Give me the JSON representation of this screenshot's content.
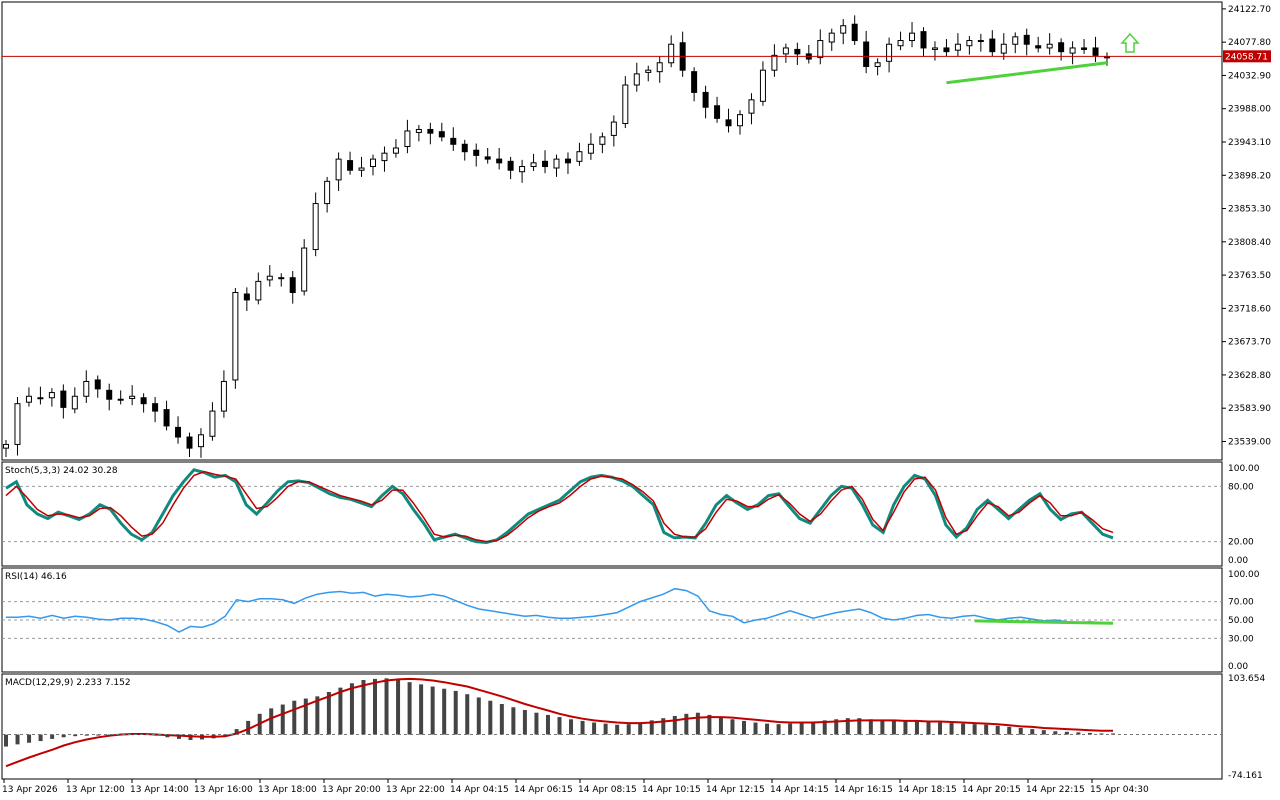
{
  "current_price_label": "24058.71",
  "colors": {
    "background": "#ffffff",
    "grid_border": "#000000",
    "bull_candle": "#ffffff",
    "bear_candle": "#000000",
    "price_line": "#c00000",
    "trendline": "#4fd13b",
    "arrow": "#4fd13b",
    "stoch_main": "#0f8a7e",
    "stoch_signal": "#c00000",
    "rsi": "#3399ee",
    "macd_hist": "#444444",
    "macd_signal": "#c00000"
  },
  "chart_data": [
    {
      "type": "candlestick",
      "price_axis_ticks": [
        "24122.70",
        "24077.80",
        "24032.90",
        "23988.00",
        "23943.10",
        "23898.20",
        "23853.30",
        "23808.40",
        "23763.50",
        "23718.60",
        "23673.70",
        "23628.80",
        "23583.90",
        "23539.00"
      ],
      "current_price": 24058.71,
      "ylim": [
        23514,
        24132
      ],
      "time_labels": [
        "13 Apr 2026",
        "13 Apr 12:00",
        "13 Apr 14:00",
        "13 Apr 16:00",
        "13 Apr 18:00",
        "13 Apr 20:00",
        "13 Apr 22:00",
        "14 Apr 04:15",
        "14 Apr 06:15",
        "14 Apr 08:15",
        "14 Apr 10:15",
        "14 Apr 12:15",
        "14 Apr 14:15",
        "14 Apr 16:15",
        "14 Apr 18:15",
        "14 Apr 20:15",
        "14 Apr 22:15",
        "15 Apr 04:30"
      ],
      "close_path": [
        23535,
        23590,
        23600,
        23598,
        23605,
        23585,
        23600,
        23620,
        23610,
        23596,
        23595,
        23600,
        23590,
        23580,
        23560,
        23545,
        23530,
        23548,
        23580,
        23620,
        23740,
        23730,
        23755,
        23762,
        23760,
        23740,
        23800,
        23860,
        23890,
        23920,
        23905,
        23908,
        23920,
        23928,
        23935,
        23958,
        23960,
        23955,
        23950,
        23940,
        23930,
        23925,
        23920,
        23915,
        23905,
        23910,
        23915,
        23910,
        23920,
        23915,
        23930,
        23940,
        23950,
        23970,
        24020,
        24035,
        24040,
        24050,
        24075,
        24040,
        24010,
        23990,
        23975,
        23965,
        23980,
        24000,
        24040,
        24060,
        24070,
        24062,
        24055,
        24080,
        24090,
        24100,
        24080,
        24045,
        24050,
        24075,
        24080,
        24090,
        24070,
        24070,
        24065,
        24075,
        24080,
        24080,
        24065,
        24075,
        24085,
        24075,
        24070,
        24075,
        24065,
        24070,
        24068,
        24060,
        24058
      ],
      "trendline_label": "support",
      "signal_arrow": "up"
    },
    {
      "type": "line",
      "name": "Stoch(5,3,3)",
      "title": "Stoch(5,3,3) 24.02 30.28",
      "main_value": 24.02,
      "signal_value": 30.28,
      "axis_ticks": [
        "100.00",
        "80.00",
        "20.00",
        "0.00"
      ],
      "levels": [
        80,
        20
      ],
      "ylim": [
        0,
        100
      ],
      "main": [
        78,
        85,
        60,
        50,
        45,
        52,
        48,
        44,
        50,
        60,
        55,
        40,
        28,
        22,
        30,
        50,
        70,
        85,
        98,
        95,
        90,
        92,
        85,
        60,
        50,
        62,
        75,
        85,
        86,
        84,
        78,
        72,
        68,
        66,
        62,
        58,
        70,
        80,
        72,
        55,
        40,
        22,
        25,
        28,
        24,
        20,
        19,
        22,
        30,
        40,
        50,
        55,
        60,
        65,
        75,
        85,
        90,
        92,
        90,
        86,
        80,
        70,
        60,
        30,
        24,
        25,
        24,
        40,
        60,
        70,
        62,
        55,
        60,
        70,
        72,
        58,
        45,
        40,
        55,
        70,
        80,
        78,
        60,
        38,
        30,
        60,
        80,
        92,
        88,
        70,
        38,
        25,
        35,
        55,
        65,
        55,
        45,
        55,
        65,
        72,
        55,
        44,
        50,
        52,
        40,
        28,
        24
      ],
      "signal": [
        70,
        80,
        68,
        55,
        48,
        50,
        49,
        46,
        48,
        56,
        57,
        48,
        36,
        26,
        28,
        40,
        60,
        78,
        92,
        96,
        93,
        91,
        88,
        72,
        56,
        58,
        68,
        80,
        85,
        85,
        80,
        75,
        70,
        67,
        64,
        60,
        65,
        76,
        76,
        62,
        46,
        28,
        25,
        27,
        26,
        22,
        20,
        21,
        27,
        36,
        46,
        53,
        58,
        62,
        70,
        80,
        88,
        91,
        90,
        88,
        82,
        74,
        64,
        40,
        28,
        25,
        25,
        34,
        52,
        66,
        64,
        58,
        58,
        66,
        71,
        62,
        50,
        42,
        50,
        64,
        76,
        80,
        66,
        44,
        32,
        52,
        74,
        88,
        90,
        76,
        46,
        28,
        32,
        48,
        62,
        58,
        48,
        52,
        62,
        70,
        62,
        48,
        48,
        52,
        44,
        34,
        30
      ]
    },
    {
      "type": "line",
      "name": "RSI(14)",
      "title": "RSI(14) 46.16",
      "value": 46.16,
      "axis_ticks": [
        "100.00",
        "70.00",
        "50.00",
        "30.00",
        "0.00"
      ],
      "levels": [
        70,
        50,
        30
      ],
      "ylim": [
        0,
        100
      ],
      "values": [
        53,
        53,
        54,
        52,
        55,
        52,
        54,
        53,
        51,
        50,
        52,
        52,
        51,
        48,
        44,
        37,
        43,
        42,
        46,
        54,
        72,
        70,
        73,
        73,
        72,
        68,
        74,
        78,
        80,
        81,
        79,
        80,
        76,
        78,
        77,
        75,
        76,
        78,
        76,
        71,
        66,
        62,
        60,
        58,
        56,
        54,
        55,
        53,
        52,
        52,
        53,
        54,
        56,
        58,
        64,
        70,
        74,
        78,
        84,
        82,
        76,
        60,
        56,
        54,
        47,
        50,
        52,
        56,
        60,
        56,
        52,
        55,
        58,
        60,
        62,
        58,
        52,
        50,
        52,
        55,
        56,
        53,
        52,
        54,
        55,
        52,
        50,
        52,
        53,
        51,
        49,
        50,
        48,
        47,
        48,
        47,
        46
      ],
      "trendline_label": "support"
    },
    {
      "type": "bar",
      "name": "MACD(12,29,9)",
      "title": "MACD(12,29,9) 2.233 7.152",
      "macd_value": 2.233,
      "signal_value": 7.152,
      "axis_ticks": [
        "103.654",
        "-74.161"
      ],
      "ylim": [
        -74.161,
        103.654
      ],
      "histogram": [
        -22,
        -18,
        -15,
        -12,
        -8,
        -5,
        -3,
        -2,
        -1,
        0,
        1,
        2,
        1,
        -2,
        -5,
        -8,
        -10,
        -9,
        -7,
        -4,
        10,
        25,
        38,
        48,
        55,
        62,
        66,
        70,
        78,
        86,
        94,
        100,
        102,
        103,
        100,
        96,
        92,
        88,
        84,
        80,
        74,
        68,
        62,
        56,
        50,
        45,
        40,
        36,
        32,
        28,
        25,
        22,
        20,
        18,
        19,
        22,
        26,
        30,
        34,
        38,
        40,
        36,
        32,
        28,
        25,
        22,
        20,
        19,
        20,
        22,
        24,
        26,
        28,
        30,
        30,
        28,
        26,
        25,
        24,
        24,
        23,
        22,
        21,
        20,
        19,
        18,
        16,
        14,
        12,
        10,
        8,
        6,
        5,
        4,
        3,
        2,
        2
      ],
      "signal": [
        -58,
        -50,
        -42,
        -35,
        -28,
        -20,
        -14,
        -9,
        -5,
        -2,
        0,
        1,
        1,
        0,
        -1,
        -2,
        -3,
        -4,
        -4,
        -3,
        2,
        10,
        20,
        30,
        38,
        46,
        54,
        62,
        70,
        78,
        85,
        90,
        95,
        99,
        101,
        102,
        101,
        99,
        96,
        92,
        88,
        82,
        76,
        70,
        63,
        56,
        50,
        44,
        38,
        33,
        29,
        26,
        24,
        22,
        21,
        21,
        22,
        24,
        26,
        29,
        31,
        32,
        32,
        31,
        29,
        27,
        25,
        23,
        22,
        22,
        22,
        23,
        24,
        25,
        26,
        26,
        26,
        26,
        25,
        25,
        24,
        24,
        23,
        22,
        21,
        20,
        19,
        17,
        15,
        14,
        12,
        11,
        10,
        9,
        8,
        7,
        7
      ]
    }
  ]
}
